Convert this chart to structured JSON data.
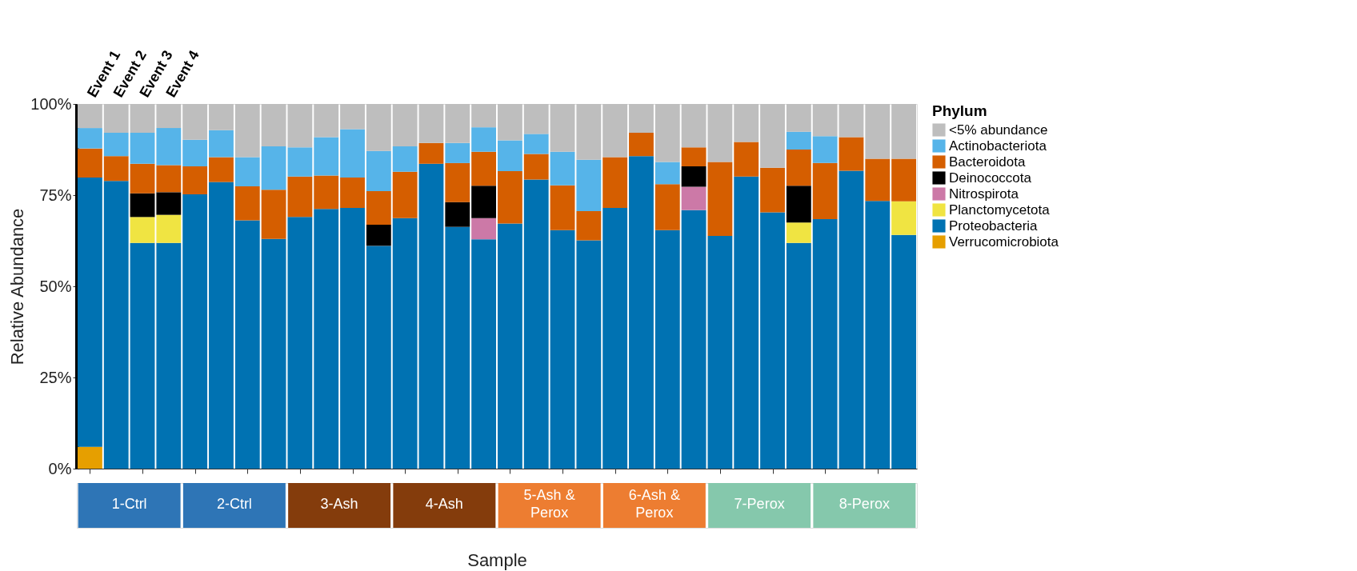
{
  "chart_data": {
    "type": "bar",
    "stacked": true,
    "xlabel": "Sample",
    "ylabel": "Relative Abundance",
    "legend_title": "Phylum",
    "legend": "right",
    "grid": false,
    "categories": [
      "Event 1",
      "Event 2",
      "Event 3",
      "Event 4",
      null,
      null,
      null,
      null,
      null,
      null,
      null,
      null,
      null,
      null,
      null,
      null,
      null,
      null,
      null,
      null,
      null,
      null,
      null,
      null,
      null,
      null,
      null,
      null,
      null,
      null,
      null,
      null
    ],
    "ylim": [
      0,
      100
    ],
    "yticks": [
      {
        "value": 0,
        "label": "0%"
      },
      {
        "value": 25,
        "label": "25%"
      },
      {
        "value": 50,
        "label": "50%"
      },
      {
        "value": 75,
        "label": "75%"
      },
      {
        "value": 100,
        "label": "100%"
      }
    ],
    "series": [
      {
        "name": "Verrucomicrobiota",
        "color": "#e69f00",
        "values": [
          6.0,
          null,
          null,
          null,
          null,
          null,
          null,
          null,
          null,
          null,
          null,
          null,
          null,
          null,
          null,
          null,
          null,
          null,
          null,
          null,
          null,
          null,
          null,
          null,
          null,
          null,
          null,
          null,
          null,
          null,
          null,
          null
        ]
      },
      {
        "name": "Proteobacteria",
        "color": "#0072b2",
        "values": [
          73.8,
          78.9,
          61.9,
          61.9,
          75.2,
          78.6,
          68.1,
          63.0,
          69.0,
          71.2,
          71.5,
          61.1,
          68.7,
          83.6,
          66.3,
          62.9,
          67.2,
          79.3,
          65.4,
          62.6,
          71.5,
          85.7,
          65.4,
          70.9,
          63.8,
          80.1,
          70.3,
          61.9,
          68.4,
          81.7,
          73.4,
          64.1
        ]
      },
      {
        "name": "Planctomycetota",
        "color": "#f0e442",
        "values": [
          null,
          null,
          7.1,
          7.7,
          null,
          null,
          null,
          null,
          null,
          null,
          null,
          null,
          null,
          null,
          null,
          null,
          null,
          null,
          null,
          null,
          null,
          null,
          null,
          null,
          null,
          null,
          null,
          5.6,
          null,
          null,
          null,
          9.2
        ]
      },
      {
        "name": "Nitrospirota",
        "color": "#cc79a7",
        "values": [
          null,
          null,
          null,
          null,
          null,
          null,
          null,
          null,
          null,
          null,
          null,
          null,
          null,
          null,
          null,
          5.8,
          null,
          null,
          null,
          null,
          null,
          null,
          null,
          6.4,
          null,
          null,
          null,
          null,
          null,
          null,
          null,
          null
        ]
      },
      {
        "name": "Deinococcota",
        "color": "#000000",
        "values": [
          null,
          null,
          6.5,
          6.2,
          null,
          null,
          null,
          null,
          null,
          null,
          null,
          5.8,
          null,
          null,
          6.8,
          8.9,
          null,
          null,
          null,
          null,
          null,
          null,
          null,
          5.6,
          null,
          null,
          null,
          10.1,
          null,
          null,
          null,
          null
        ]
      },
      {
        "name": "Bacteroidota",
        "color": "#d55e00",
        "values": [
          8.0,
          6.8,
          8.1,
          7.4,
          7.7,
          6.8,
          9.3,
          13.5,
          11.1,
          9.2,
          8.3,
          9.2,
          12.7,
          5.7,
          10.7,
          9.3,
          14.4,
          7.0,
          12.3,
          8.0,
          13.9,
          6.4,
          12.6,
          5.2,
          20.3,
          9.5,
          12.2,
          9.9,
          15.4,
          9.2,
          11.6,
          11.7
        ]
      },
      {
        "name": "Actinobacteriota",
        "color": "#56b4e9",
        "values": [
          5.6,
          6.4,
          8.5,
          10.2,
          7.3,
          7.4,
          8.0,
          11.9,
          8.0,
          10.5,
          13.3,
          11.0,
          7.0,
          null,
          5.5,
          6.7,
          8.4,
          5.5,
          9.2,
          14.1,
          null,
          null,
          6.1,
          null,
          null,
          null,
          null,
          4.9,
          7.4,
          null,
          null,
          null
        ]
      },
      {
        "name": "<5% abundance",
        "color": "#bebebe",
        "values": [
          6.6,
          7.9,
          7.9,
          6.6,
          9.8,
          7.2,
          14.6,
          11.6,
          11.9,
          9.1,
          6.9,
          12.9,
          11.6,
          10.7,
          10.7,
          6.4,
          10.0,
          8.2,
          13.1,
          15.3,
          14.6,
          7.9,
          15.9,
          11.9,
          15.9,
          10.4,
          17.5,
          7.6,
          8.8,
          9.1,
          15.0,
          15.0
        ]
      }
    ],
    "annotations": [
      "1-Ctrl",
      "2-Ctrl",
      "3-Ash",
      "4-Ash",
      "5-Ash & Perox",
      "6-Ash & Perox",
      "7-Perox",
      "8-Perox"
    ]
  }
}
